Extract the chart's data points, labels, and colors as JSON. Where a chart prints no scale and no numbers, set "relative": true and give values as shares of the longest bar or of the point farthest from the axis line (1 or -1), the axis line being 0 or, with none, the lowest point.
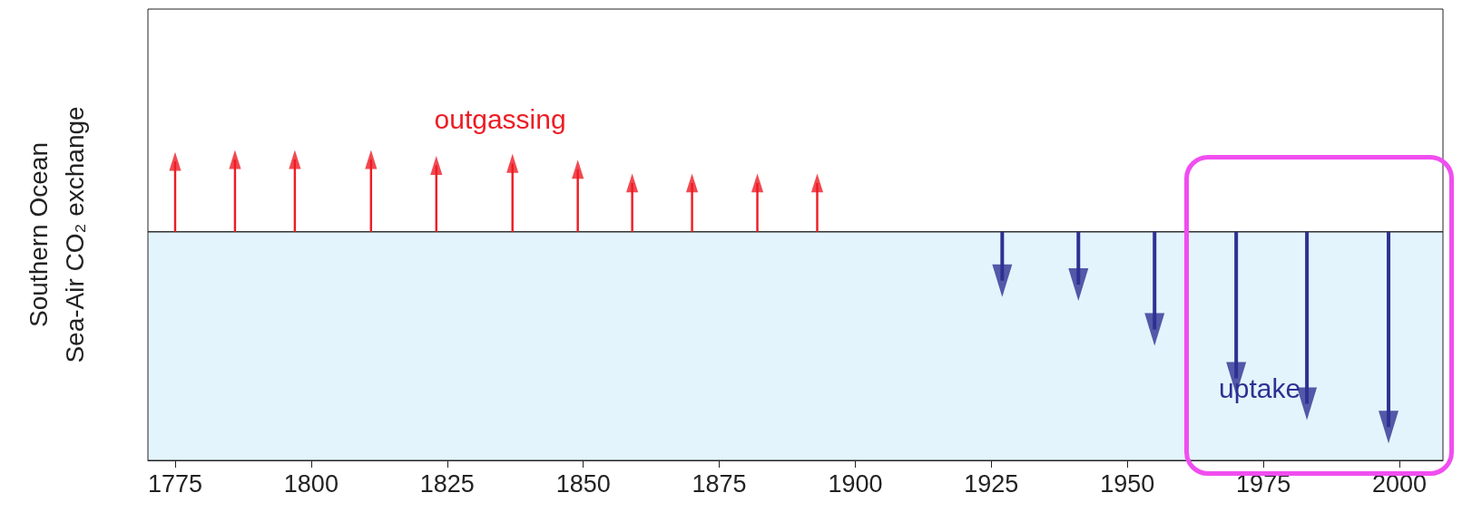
{
  "chart_data": {
    "type": "lollipop",
    "marker": "triangle",
    "relative": true,
    "ylabel": "Southern Ocean\nSea-Air CO₂ exchange",
    "xlim": [
      1770,
      2008
    ],
    "xticks": [
      1775,
      1800,
      1825,
      1850,
      1875,
      1900,
      1925,
      1950,
      1975,
      2000
    ],
    "tick_labels": "x",
    "ref_lines": [
      {
        "axis": "y",
        "value": 0,
        "color": "#333333"
      }
    ],
    "bands": [
      {
        "axis": "y",
        "from": -1.17,
        "to": 0,
        "color": "#e4f4fc"
      }
    ],
    "series": [
      {
        "name": "outgassing",
        "color": "#ed1c24",
        "x": [
          1775,
          1786,
          1797,
          1811,
          1823,
          1837,
          1849,
          1859,
          1870,
          1882,
          1893
        ],
        "values": [
          0.36,
          0.37,
          0.37,
          0.37,
          0.34,
          0.35,
          0.32,
          0.25,
          0.25,
          0.25,
          0.25
        ]
      },
      {
        "name": "uptake",
        "color": "#2e3192",
        "x": [
          1927,
          1941,
          1955,
          1970,
          1983,
          1998
        ],
        "values": [
          -0.25,
          -0.27,
          -0.5,
          -0.75,
          -0.88,
          -1
        ]
      }
    ]
  }
}
